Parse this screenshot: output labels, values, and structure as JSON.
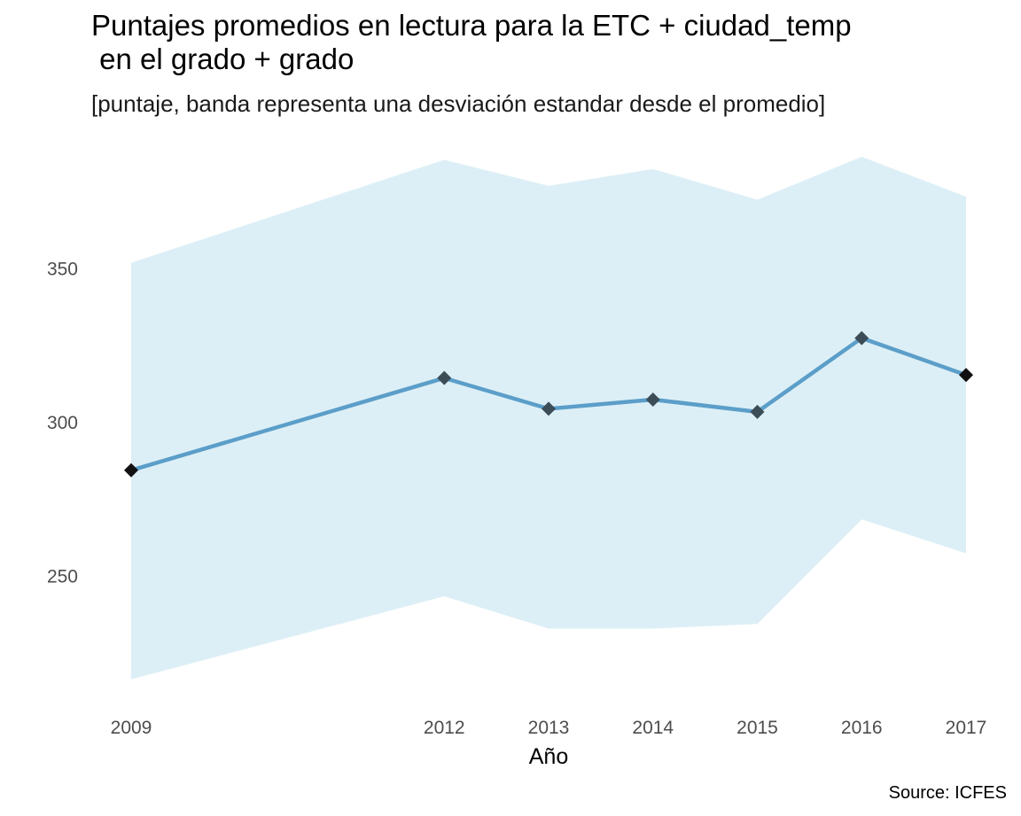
{
  "chart_data": {
    "type": "line",
    "title": "Puntajes promedios en lectura para la ETC + ciudad_temp\n en el grado + grado",
    "subtitle": "[puntaje, banda representa una desviación estandar desde el promedio]",
    "xlabel": "Año",
    "ylabel": "",
    "caption": "Source: ICFES",
    "x": [
      2009,
      2012,
      2013,
      2014,
      2015,
      2016,
      2017
    ],
    "x_tick_labels": [
      "2009",
      "2012",
      "2013",
      "2014",
      "2015",
      "2016",
      "2017"
    ],
    "y_ticks": [
      250,
      300,
      350
    ],
    "y_tick_labels": [
      "250",
      "300",
      "350"
    ],
    "xlim": [
      2009,
      2017
    ],
    "ylim": [
      200,
      400
    ],
    "grid": false,
    "series": [
      {
        "values": [
          284.5,
          314.5,
          304.5,
          307.5,
          303.5,
          327.5,
          315.5
        ],
        "band_upper": [
          352,
          385.5,
          377,
          382.5,
          372.5,
          386.5,
          373.5
        ],
        "band_lower": [
          216.5,
          243.5,
          233,
          233,
          234.5,
          268.5,
          257.5
        ]
      }
    ],
    "colors": {
      "line": "#5b9ec9",
      "band": "#ddeff6",
      "marker": "#3c4d57",
      "marker_end": "#111111"
    }
  }
}
